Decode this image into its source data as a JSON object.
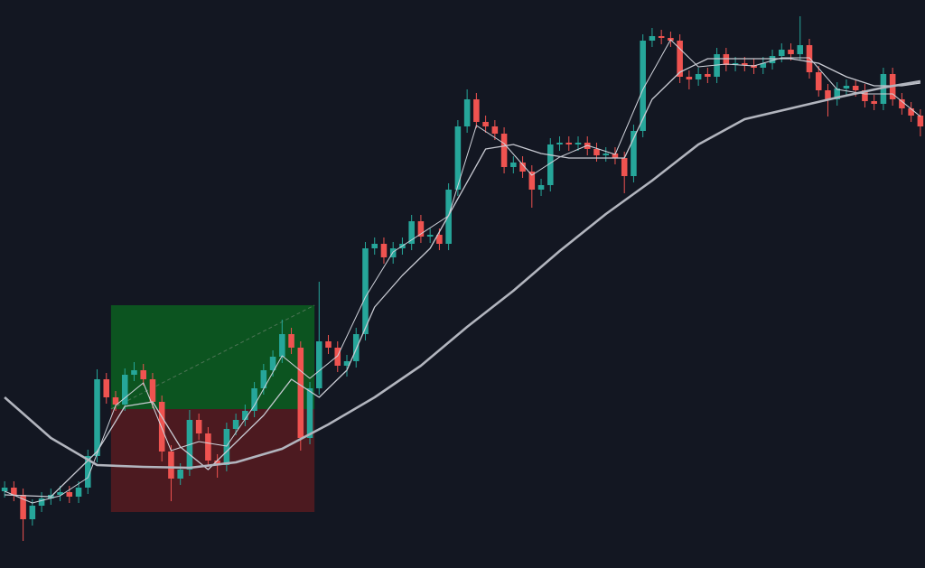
{
  "chart_data": {
    "type": "candlestick",
    "background": "#131722",
    "up_color": "#26a69a",
    "down_color": "#ef5350",
    "xlim": [
      -0.5,
      99.5
    ],
    "ylim": [
      0,
      629
    ],
    "open": [
      85,
      89,
      81,
      54,
      69,
      77,
      81,
      84,
      79,
      89,
      124,
      209,
      189,
      181,
      214,
      219,
      209,
      184,
      129,
      99,
      109,
      164,
      149,
      119,
      114,
      154,
      164,
      174,
      199,
      219,
      234,
      259,
      244,
      144,
      199,
      251,
      244,
      224,
      229,
      259,
      354,
      359,
      344,
      354,
      359,
      384,
      367,
      369,
      359,
      419,
      489,
      519,
      494,
      489,
      481,
      444,
      449,
      439,
      419,
      424,
      469,
      471,
      469,
      471,
      464,
      457,
      459,
      454,
      434,
      484,
      584,
      589,
      587,
      584,
      544,
      541,
      547,
      544,
      569,
      557,
      559,
      557,
      554,
      559,
      567,
      574,
      569,
      579,
      549,
      529,
      519,
      531,
      534,
      529,
      517,
      514,
      547,
      519,
      509,
      501
    ],
    "high": [
      96,
      96,
      88,
      76,
      84,
      88,
      91,
      91,
      96,
      131,
      220,
      216,
      196,
      221,
      228,
      226,
      216,
      191,
      136,
      116,
      175,
      171,
      156,
      126,
      161,
      171,
      181,
      206,
      226,
      241,
      275,
      266,
      251,
      206,
      317,
      258,
      251,
      236,
      266,
      361,
      366,
      366,
      361,
      366,
      391,
      391,
      376,
      376,
      426,
      496,
      530,
      526,
      501,
      496,
      488,
      456,
      456,
      446,
      431,
      476,
      478,
      478,
      478,
      478,
      471,
      466,
      466,
      461,
      491,
      591,
      598,
      596,
      594,
      591,
      551,
      554,
      554,
      576,
      576,
      566,
      566,
      564,
      566,
      574,
      581,
      581,
      611,
      586,
      556,
      536,
      538,
      541,
      541,
      536,
      524,
      554,
      554,
      526,
      516,
      508
    ],
    "low": [
      78,
      74,
      30,
      47,
      62,
      70,
      74,
      72,
      72,
      82,
      117,
      182,
      174,
      174,
      207,
      202,
      177,
      118,
      74,
      92,
      102,
      142,
      112,
      100,
      107,
      147,
      157,
      167,
      192,
      212,
      227,
      237,
      130,
      137,
      192,
      237,
      217,
      212,
      222,
      252,
      347,
      337,
      337,
      347,
      352,
      360,
      360,
      352,
      352,
      412,
      482,
      487,
      482,
      474,
      437,
      437,
      432,
      399,
      412,
      417,
      462,
      462,
      462,
      457,
      450,
      450,
      447,
      415,
      427,
      477,
      577,
      580,
      577,
      537,
      530,
      534,
      537,
      537,
      550,
      550,
      550,
      547,
      547,
      552,
      560,
      562,
      562,
      542,
      522,
      500,
      512,
      524,
      522,
      510,
      507,
      507,
      512,
      502,
      494,
      478
    ],
    "close": [
      89,
      81,
      54,
      69,
      77,
      81,
      84,
      79,
      89,
      124,
      209,
      189,
      181,
      214,
      219,
      209,
      184,
      129,
      99,
      109,
      164,
      149,
      119,
      114,
      154,
      164,
      174,
      199,
      219,
      234,
      259,
      244,
      144,
      199,
      251,
      244,
      224,
      229,
      259,
      354,
      359,
      344,
      354,
      359,
      384,
      367,
      369,
      359,
      419,
      489,
      519,
      494,
      489,
      481,
      444,
      449,
      439,
      419,
      424,
      469,
      471,
      469,
      471,
      464,
      457,
      459,
      454,
      434,
      484,
      584,
      589,
      587,
      584,
      544,
      541,
      547,
      544,
      569,
      557,
      559,
      557,
      554,
      559,
      567,
      574,
      569,
      579,
      549,
      529,
      519,
      531,
      534,
      529,
      517,
      514,
      547,
      519,
      509,
      501,
      489
    ],
    "series": [
      {
        "color": "#d1d4dc",
        "width": 1,
        "x": [
          0,
          3,
          6,
          9,
          12,
          15,
          18,
          21,
          24,
          27,
          30,
          33,
          36,
          39,
          42,
          45,
          48,
          51,
          54,
          57,
          60,
          63,
          66,
          69,
          72,
          75,
          78,
          81,
          84,
          87,
          90,
          93,
          96,
          99
        ],
        "values": [
          85,
          72,
          80,
          100,
          180,
          205,
          130,
          140,
          135,
          180,
          235,
          210,
          235,
          300,
          350,
          370,
          390,
          490,
          470,
          435,
          455,
          468,
          458,
          530,
          585,
          555,
          558,
          556,
          565,
          565,
          530,
          525,
          525,
          500
        ]
      },
      {
        "color": "#c8cad2",
        "width": 1.3,
        "x": [
          0,
          5,
          10,
          13,
          16,
          19,
          22,
          25,
          28,
          31,
          34,
          37,
          40,
          43,
          46,
          49,
          52,
          55,
          58,
          61,
          64,
          67,
          70,
          73,
          76,
          79,
          82,
          85,
          88,
          91,
          94,
          97,
          99
        ],
        "values": [
          81,
          79,
          129,
          179,
          184,
          134,
          109,
          139,
          169,
          209,
          189,
          219,
          289,
          324,
          354,
          409,
          464,
          469,
          459,
          454,
          454,
          454,
          519,
          549,
          564,
          564,
          564,
          564,
          559,
          544,
          534,
          534,
          537
        ]
      },
      {
        "color": "#b2b5be",
        "width": 2.6,
        "x": [
          0,
          5,
          10,
          15,
          20,
          25,
          30,
          35,
          40,
          45,
          50,
          55,
          60,
          65,
          70,
          75,
          80,
          85,
          90,
          95,
          99
        ],
        "values": [
          189,
          144,
          114,
          112,
          111,
          117,
          132,
          159,
          189,
          224,
          267,
          307,
          351,
          392,
          429,
          469,
          497,
          509,
          521,
          532,
          539
        ]
      }
    ],
    "position": {
      "start": 12,
      "end": 33,
      "entry": 176,
      "target": 291,
      "stop": 62,
      "target_color": "#0c5420",
      "stop_color": "#4c1a20"
    }
  }
}
